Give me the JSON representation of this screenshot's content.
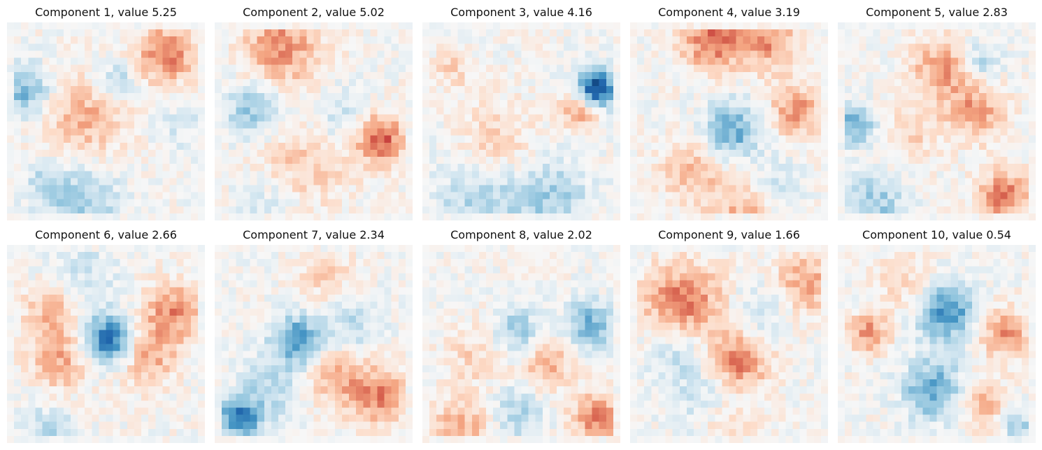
{
  "figure": {
    "colormap": "RdBu_r",
    "colormap_stops": [
      "#053061",
      "#2166ac",
      "#4393c3",
      "#92c5de",
      "#d1e5f0",
      "#f7f7f7",
      "#fddbc7",
      "#f4a582",
      "#d6604d",
      "#b2182b",
      "#67001f"
    ],
    "value_range": [
      -1,
      1
    ],
    "grid_size": 28,
    "layout_rows": 2,
    "layout_cols": 5
  },
  "chart_data": [
    {
      "type": "heatmap",
      "title": "Component 1, value 5.25",
      "component": 1,
      "value": 5.25,
      "pattern_seed": 11
    },
    {
      "type": "heatmap",
      "title": "Component 2, value 5.02",
      "component": 2,
      "value": 5.02,
      "pattern_seed": 23
    },
    {
      "type": "heatmap",
      "title": "Component 3, value 4.16",
      "component": 3,
      "value": 4.16,
      "pattern_seed": 37
    },
    {
      "type": "heatmap",
      "title": "Component 4, value 3.19",
      "component": 4,
      "value": 3.19,
      "pattern_seed": 41
    },
    {
      "type": "heatmap",
      "title": "Component 5, value 2.83",
      "component": 5,
      "value": 2.83,
      "pattern_seed": 53
    },
    {
      "type": "heatmap",
      "title": "Component 6, value 2.66",
      "component": 6,
      "value": 2.66,
      "pattern_seed": 67
    },
    {
      "type": "heatmap",
      "title": "Component 7, value 2.34",
      "component": 7,
      "value": 2.34,
      "pattern_seed": 71
    },
    {
      "type": "heatmap",
      "title": "Component 8, value 2.02",
      "component": 8,
      "value": 2.02,
      "pattern_seed": 83
    },
    {
      "type": "heatmap",
      "title": "Component 9, value 1.66",
      "component": 9,
      "value": 1.66,
      "pattern_seed": 97
    },
    {
      "type": "heatmap",
      "title": "Component 10, value 0.54",
      "component": 10,
      "value": 0.54,
      "pattern_seed": 101
    }
  ]
}
